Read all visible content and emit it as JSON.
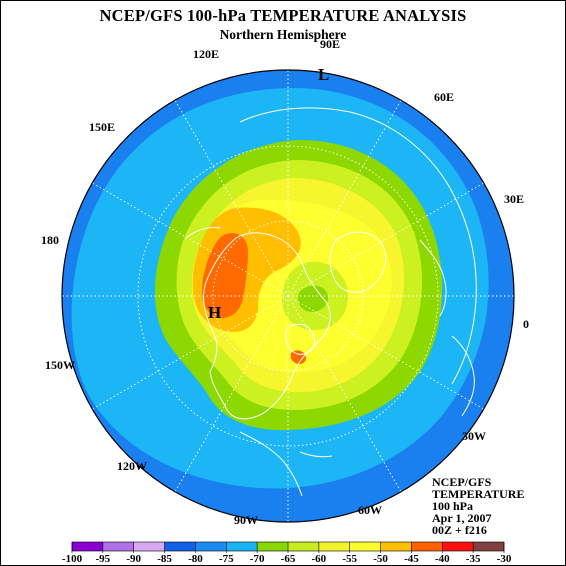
{
  "header": {
    "title": "NCEP/GFS 100-hPa TEMPERATURE ANALYSIS",
    "subtitle": "Northern Hemisphere"
  },
  "longitude_labels": [
    "90E",
    "60E",
    "30E",
    "0",
    "30W",
    "60W",
    "90W",
    "120W",
    "150W",
    "180",
    "150E",
    "120E"
  ],
  "pressure_centers": [
    "L",
    "H"
  ],
  "info_box": [
    "NCEP/GFS",
    "TEMPERATURE",
    "100 hPa",
    "Apr 1, 2007",
    "00Z + f216"
  ],
  "colorbar": {
    "ticks": [
      "-100",
      "-95",
      "-90",
      "-85",
      "-80",
      "-75",
      "-70",
      "-65",
      "-60",
      "-55",
      "-50",
      "-45",
      "-40",
      "-35",
      "-30"
    ],
    "colors": [
      "#8a00d0",
      "#b070e8",
      "#d8a8f5",
      "#1060e8",
      "#1c8cf5",
      "#18b4f5",
      "#88d800",
      "#c8ec20",
      "#f0f428",
      "#ffff30",
      "#ffc000",
      "#ff6000",
      "#ff1010",
      "#804040"
    ]
  },
  "palette": {
    "outer": "#1a80f0",
    "light_blue": "#1cb6f6",
    "green": "#8cd800",
    "yellow_green": "#ccf020",
    "yellow": "#f7f52d",
    "bright_yellow": "#ffff30",
    "orange_light": "#ffbf00",
    "orange": "#ff6a00",
    "coast": "#ffffff"
  }
}
